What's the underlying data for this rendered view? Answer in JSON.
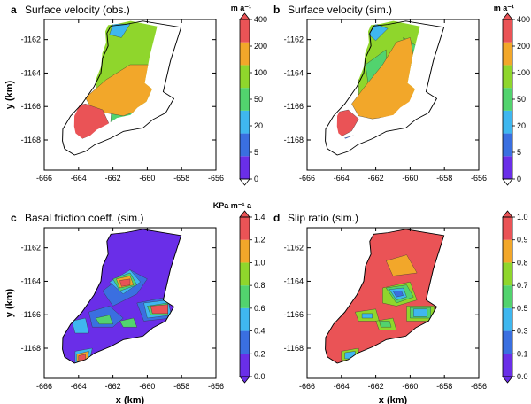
{
  "chart_data": [
    {
      "type": "heatmap",
      "panel_letter": "a",
      "title": "Surface velocity (obs.)",
      "xlabel": "",
      "ylabel": "y (km)",
      "xlim": [
        -666,
        -656
      ],
      "ylim": [
        -1169.8,
        -1160.8
      ],
      "x_ticks": [
        "-666",
        "-664",
        "-662",
        "-660",
        "-658",
        "-656"
      ],
      "y_ticks": [
        "-1162",
        "-1164",
        "-1166",
        "-1168"
      ],
      "colorbar": {
        "unit": "m a⁻¹",
        "levels": [
          "0",
          "5",
          "20",
          "50",
          "100",
          "200",
          "400"
        ],
        "colors": [
          "#6a2ee8",
          "#3a6fe0",
          "#3fb7ef",
          "#52d36e",
          "#8fd62c",
          "#f2a72a",
          "#ea5356"
        ]
      }
    },
    {
      "type": "heatmap",
      "panel_letter": "b",
      "title": "Surface velocity (sim.)",
      "xlabel": "",
      "ylabel": "",
      "xlim": [
        -666,
        -656
      ],
      "ylim": [
        -1169.8,
        -1160.8
      ],
      "x_ticks": [
        "-666",
        "-664",
        "-662",
        "-660",
        "-658",
        "-656"
      ],
      "y_ticks": [
        "-1162",
        "-1164",
        "-1166",
        "-1168"
      ],
      "colorbar": {
        "unit": "m a⁻¹",
        "levels": [
          "0",
          "5",
          "20",
          "50",
          "100",
          "200",
          "400"
        ],
        "colors": [
          "#6a2ee8",
          "#3a6fe0",
          "#3fb7ef",
          "#52d36e",
          "#8fd62c",
          "#f2a72a",
          "#ea5356"
        ]
      }
    },
    {
      "type": "heatmap",
      "panel_letter": "c",
      "title": "Basal friction coeff. (sim.)",
      "xlabel": "x (km)",
      "ylabel": "y (km)",
      "xlim": [
        -666,
        -656
      ],
      "ylim": [
        -1169.8,
        -1160.8
      ],
      "x_ticks": [
        "-666",
        "-664",
        "-662",
        "-660",
        "-658",
        "-656"
      ],
      "y_ticks": [
        "-1162",
        "-1164",
        "-1166",
        "-1168"
      ],
      "colorbar": {
        "unit": "KPa m⁻¹ a",
        "levels": [
          "0.0",
          "0.2",
          "0.4",
          "0.6",
          "0.8",
          "1.0",
          "1.2",
          "1.4"
        ],
        "colors": [
          "#6a2ee8",
          "#3a6fe0",
          "#3fb7ef",
          "#52d36e",
          "#8fd62c",
          "#f2a72a",
          "#ea5356"
        ]
      }
    },
    {
      "type": "heatmap",
      "panel_letter": "d",
      "title": "Slip ratio (sim.)",
      "xlabel": "x (km)",
      "ylabel": "",
      "xlim": [
        -666,
        -656
      ],
      "ylim": [
        -1169.8,
        -1160.8
      ],
      "x_ticks": [
        "-666",
        "-664",
        "-662",
        "-660",
        "-658",
        "-656"
      ],
      "y_ticks": [
        "-1162",
        "-1164",
        "-1166",
        "-1168"
      ],
      "colorbar": {
        "unit": "",
        "levels": [
          "0.0",
          "0.1",
          "0.3",
          "0.5",
          "0.7",
          "0.8",
          "0.9",
          "1.0"
        ],
        "colors": [
          "#6a2ee8",
          "#3a6fe0",
          "#3fb7ef",
          "#52d36e",
          "#8fd62c",
          "#f2a72a",
          "#ea5356"
        ]
      }
    }
  ]
}
